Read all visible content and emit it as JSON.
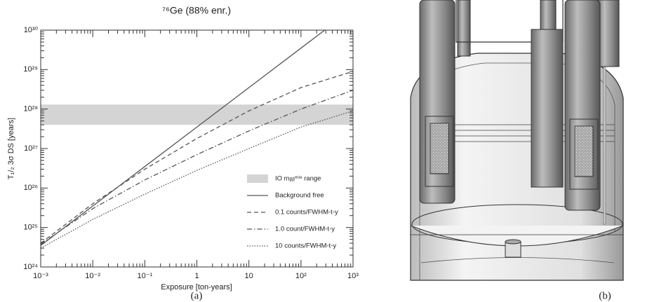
{
  "chart_data": {
    "type": "line",
    "title": "⁷⁶Ge (88% enr.)",
    "x_label": "Exposure [ton-years]",
    "y_label": "T₁/₂ 3σ DS [years]",
    "x": [
      0.001,
      0.01,
      0.1,
      1,
      10,
      100,
      1000
    ],
    "series": [
      {
        "name": "Background free",
        "color": "#555555",
        "style": "solid",
        "values": [
          3.5e+24,
          3.5e+25,
          3.5e+26,
          3.5e+27,
          3.5e+28,
          3.5e+29,
          3.5e+30
        ]
      },
      {
        "name": "0.1 counts/FWHM-t-y",
        "color": "#555555",
        "style": "dashed",
        "values": [
          4e+24,
          4e+25,
          3e+26,
          1.8e+27,
          9e+27,
          3.5e+28,
          9e+28
        ]
      },
      {
        "name": "1.0 count/FWHM-t-y",
        "color": "#555555",
        "style": "dashdot",
        "values": [
          3.8e+24,
          3e+25,
          1.6e+26,
          7e+26,
          2.8e+27,
          1e+28,
          3e+28
        ]
      },
      {
        "name": "10 counts/FWHM-t-y",
        "color": "#555555",
        "style": "dotted",
        "values": [
          3e+24,
          1.6e+25,
          7e+25,
          2.8e+26,
          1e+27,
          3.5e+27,
          9e+27
        ]
      }
    ],
    "band": {
      "name": "IO mᵦᵦᵐⁱⁿ range",
      "color": "#d4d4d4",
      "range": [
        4e+27,
        1.3e+28
      ]
    },
    "xlim": [
      0.001,
      1000
    ],
    "ylim": [
      1e+24,
      1e+30
    ],
    "x_log": true,
    "y_log": true,
    "xticks": [
      {
        "value": 0.001,
        "label": "10⁻³"
      },
      {
        "value": 0.01,
        "label": "10⁻²"
      },
      {
        "value": 0.1,
        "label": "10⁻¹"
      },
      1,
      10,
      {
        "value": 100,
        "label": "10²"
      },
      {
        "value": 1000,
        "label": "10³"
      }
    ],
    "yticks": [
      {
        "value": 1e+24,
        "label": "10²⁴"
      },
      {
        "value": 1e+25,
        "label": "10²⁵"
      },
      {
        "value": 1e+26,
        "label": "10²⁶"
      },
      {
        "value": 1e+27,
        "label": "10²⁷"
      },
      {
        "value": 1e+28,
        "label": "10²⁸"
      },
      {
        "value": 1e+29,
        "label": "10²⁹"
      },
      {
        "value": 1e+30,
        "label": "10³⁰"
      }
    ],
    "legend": "lower right"
  },
  "captions": [
    "(a)",
    "(b)"
  ]
}
